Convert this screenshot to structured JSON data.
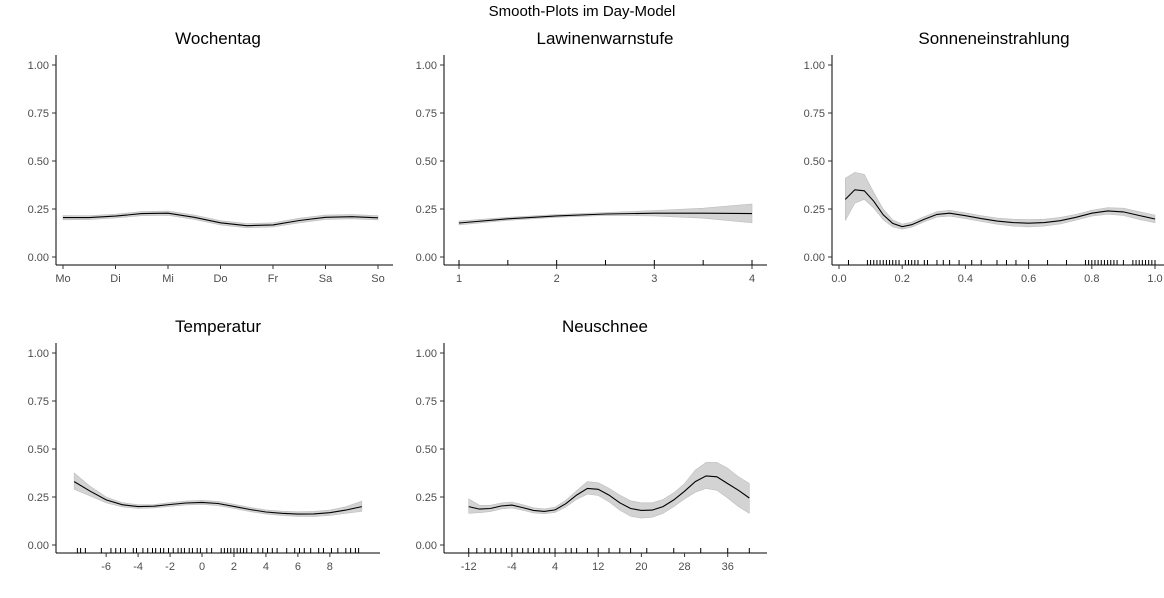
{
  "figure": {
    "title": "Smooth-Plots im Day-Model"
  },
  "chart_data": [
    {
      "type": "line",
      "title": "Wochentag",
      "xlabel": "",
      "ylabel": "",
      "ylim": [
        0,
        1
      ],
      "y_ticks": [
        "0.00",
        "0.25",
        "0.50",
        "0.75",
        "1.00"
      ],
      "xlim": [
        1,
        7
      ],
      "x_ticks": [
        {
          "v": 1,
          "label": "Mo"
        },
        {
          "v": 2,
          "label": "Di"
        },
        {
          "v": 3,
          "label": "Mi"
        },
        {
          "v": 4,
          "label": "Do"
        },
        {
          "v": 5,
          "label": "Fr"
        },
        {
          "v": 6,
          "label": "Sa"
        },
        {
          "v": 7,
          "label": "So"
        }
      ],
      "series": [
        {
          "x": [
            1,
            1.5,
            2,
            2.5,
            3,
            3.5,
            4,
            4.5,
            5,
            5.5,
            6,
            6.5,
            7
          ],
          "y": [
            0.205,
            0.205,
            0.213,
            0.226,
            0.228,
            0.207,
            0.178,
            0.163,
            0.167,
            0.19,
            0.207,
            0.21,
            0.204
          ],
          "lower": [
            0.194,
            0.195,
            0.203,
            0.215,
            0.217,
            0.196,
            0.167,
            0.152,
            0.156,
            0.178,
            0.196,
            0.199,
            0.193
          ],
          "upper": [
            0.216,
            0.215,
            0.223,
            0.237,
            0.239,
            0.218,
            0.189,
            0.174,
            0.178,
            0.202,
            0.218,
            0.221,
            0.215
          ]
        }
      ],
      "rug": []
    },
    {
      "type": "line",
      "title": "Lawinenwarnstufe",
      "xlabel": "",
      "ylabel": "",
      "ylim": [
        0,
        1
      ],
      "y_ticks": [
        "0.00",
        "0.25",
        "0.50",
        "0.75",
        "1.00"
      ],
      "xlim": [
        1,
        4
      ],
      "x_ticks": [
        {
          "v": 1,
          "label": "1"
        },
        {
          "v": 2,
          "label": "2"
        },
        {
          "v": 3,
          "label": "3"
        },
        {
          "v": 4,
          "label": "4"
        }
      ],
      "series": [
        {
          "x": [
            1,
            1.5,
            2,
            2.5,
            3,
            3.5,
            4
          ],
          "y": [
            0.177,
            0.199,
            0.214,
            0.224,
            0.228,
            0.228,
            0.226
          ],
          "lower": [
            0.167,
            0.191,
            0.207,
            0.216,
            0.214,
            0.202,
            0.178
          ],
          "upper": [
            0.187,
            0.207,
            0.221,
            0.232,
            0.242,
            0.254,
            0.276
          ]
        }
      ],
      "rug": [
        1,
        1.5,
        2,
        2.5,
        3,
        3.5,
        4
      ]
    },
    {
      "type": "line",
      "title": "Sonneneinstrahlung",
      "xlabel": "",
      "ylabel": "",
      "ylim": [
        0,
        1
      ],
      "y_ticks": [
        "0.00",
        "0.25",
        "0.50",
        "0.75",
        "1.00"
      ],
      "xlim": [
        0,
        1
      ],
      "x_ticks": [
        {
          "v": 0,
          "label": "0.0"
        },
        {
          "v": 0.2,
          "label": "0.2"
        },
        {
          "v": 0.4,
          "label": "0.4"
        },
        {
          "v": 0.6,
          "label": "0.6"
        },
        {
          "v": 0.8,
          "label": "0.8"
        },
        {
          "v": 1,
          "label": "1.0"
        }
      ],
      "series": [
        {
          "x": [
            0.02,
            0.05,
            0.08,
            0.11,
            0.14,
            0.17,
            0.2,
            0.23,
            0.27,
            0.31,
            0.35,
            0.4,
            0.45,
            0.5,
            0.55,
            0.6,
            0.65,
            0.7,
            0.75,
            0.8,
            0.85,
            0.9,
            0.95,
            1.0
          ],
          "y": [
            0.3,
            0.35,
            0.345,
            0.29,
            0.22,
            0.175,
            0.158,
            0.168,
            0.197,
            0.222,
            0.228,
            0.215,
            0.2,
            0.187,
            0.179,
            0.176,
            0.179,
            0.189,
            0.207,
            0.228,
            0.24,
            0.235,
            0.216,
            0.198
          ],
          "lower": [
            0.19,
            0.28,
            0.3,
            0.255,
            0.195,
            0.157,
            0.145,
            0.155,
            0.184,
            0.208,
            0.213,
            0.2,
            0.185,
            0.171,
            0.161,
            0.157,
            0.161,
            0.172,
            0.192,
            0.213,
            0.223,
            0.216,
            0.196,
            0.178
          ],
          "upper": [
            0.41,
            0.44,
            0.43,
            0.335,
            0.25,
            0.193,
            0.171,
            0.181,
            0.21,
            0.236,
            0.243,
            0.23,
            0.215,
            0.203,
            0.197,
            0.195,
            0.197,
            0.206,
            0.222,
            0.243,
            0.257,
            0.254,
            0.236,
            0.218
          ]
        }
      ],
      "rug": [
        0.03,
        0.09,
        0.1,
        0.11,
        0.12,
        0.13,
        0.14,
        0.15,
        0.16,
        0.17,
        0.18,
        0.19,
        0.21,
        0.22,
        0.23,
        0.24,
        0.25,
        0.27,
        0.28,
        0.31,
        0.33,
        0.35,
        0.38,
        0.42,
        0.45,
        0.5,
        0.53,
        0.56,
        0.6,
        0.66,
        0.72,
        0.78,
        0.79,
        0.8,
        0.81,
        0.82,
        0.83,
        0.84,
        0.85,
        0.86,
        0.87,
        0.88,
        0.9,
        0.93,
        0.94,
        0.95,
        0.96,
        0.97,
        0.98,
        0.99,
        1.0
      ]
    },
    {
      "type": "line",
      "title": "Temperatur",
      "xlabel": "",
      "ylabel": "",
      "ylim": [
        0,
        1
      ],
      "y_ticks": [
        "0.00",
        "0.25",
        "0.50",
        "0.75",
        "1.00"
      ],
      "xlim": [
        -8.2,
        10.2
      ],
      "x_ticks": [
        {
          "v": -6,
          "label": "-6"
        },
        {
          "v": -4,
          "label": "-4"
        },
        {
          "v": -2,
          "label": "-2"
        },
        {
          "v": 0,
          "label": "0"
        },
        {
          "v": 2,
          "label": "2"
        },
        {
          "v": 4,
          "label": "4"
        },
        {
          "v": 6,
          "label": "6"
        },
        {
          "v": 8,
          "label": "8"
        }
      ],
      "series": [
        {
          "x": [
            -8,
            -7,
            -6,
            -5,
            -4,
            -3,
            -2,
            -1,
            0,
            1,
            2,
            3,
            4,
            5,
            6,
            7,
            8,
            9,
            10
          ],
          "y": [
            0.33,
            0.28,
            0.235,
            0.21,
            0.2,
            0.202,
            0.211,
            0.219,
            0.222,
            0.216,
            0.201,
            0.185,
            0.172,
            0.165,
            0.161,
            0.162,
            0.168,
            0.182,
            0.2
          ],
          "lower": [
            0.29,
            0.255,
            0.22,
            0.199,
            0.19,
            0.193,
            0.201,
            0.209,
            0.211,
            0.205,
            0.19,
            0.174,
            0.161,
            0.154,
            0.149,
            0.149,
            0.154,
            0.165,
            0.175
          ],
          "upper": [
            0.375,
            0.305,
            0.25,
            0.221,
            0.21,
            0.211,
            0.221,
            0.229,
            0.233,
            0.227,
            0.212,
            0.196,
            0.183,
            0.176,
            0.173,
            0.175,
            0.182,
            0.199,
            0.228
          ]
        }
      ],
      "rug": [
        -7.8,
        -7.6,
        -7.3,
        -6.3,
        -5.7,
        -5.4,
        -5.1,
        -4.8,
        -4.3,
        -4.1,
        -3.7,
        -3.4,
        -3.1,
        -2.9,
        -2.6,
        -2.4,
        -2.1,
        -1.8,
        -1.5,
        -1.3,
        -1.1,
        -0.8,
        -0.6,
        -0.3,
        -0.1,
        0.3,
        0.6,
        1.2,
        1.4,
        1.6,
        1.8,
        2,
        2.2,
        2.4,
        2.6,
        2.8,
        3.1,
        3.5,
        3.8,
        4.1,
        4.4,
        4.7,
        5.3,
        5.8,
        6.1,
        6.4,
        6.8,
        7.3,
        7.6,
        8.1,
        8.5,
        9,
        9.3,
        9.6,
        9.8
      ]
    },
    {
      "type": "line",
      "title": "Neuschnee",
      "xlabel": "",
      "ylabel": "",
      "ylim": [
        0,
        1
      ],
      "y_ticks": [
        "0.00",
        "0.25",
        "0.50",
        "0.75",
        "1.00"
      ],
      "xlim": [
        -13.8,
        40.5
      ],
      "x_ticks": [
        {
          "v": -12,
          "label": "-12"
        },
        {
          "v": -4,
          "label": "-4"
        },
        {
          "v": 4,
          "label": "4"
        },
        {
          "v": 12,
          "label": "12"
        },
        {
          "v": 20,
          "label": "20"
        },
        {
          "v": 28,
          "label": "28"
        },
        {
          "v": 36,
          "label": "36"
        }
      ],
      "series": [
        {
          "x": [
            -12,
            -10,
            -8,
            -6,
            -4,
            -2,
            0,
            2,
            4,
            6,
            8,
            10,
            12,
            14,
            16,
            18,
            20,
            22,
            24,
            26,
            28,
            30,
            32,
            34,
            36,
            38,
            40
          ],
          "y": [
            0.2,
            0.187,
            0.19,
            0.203,
            0.208,
            0.195,
            0.18,
            0.175,
            0.183,
            0.215,
            0.26,
            0.295,
            0.29,
            0.26,
            0.22,
            0.19,
            0.18,
            0.182,
            0.2,
            0.235,
            0.28,
            0.33,
            0.36,
            0.355,
            0.32,
            0.285,
            0.245
          ],
          "lower": [
            0.165,
            0.168,
            0.174,
            0.188,
            0.193,
            0.181,
            0.167,
            0.163,
            0.17,
            0.198,
            0.238,
            0.265,
            0.258,
            0.225,
            0.182,
            0.15,
            0.14,
            0.145,
            0.165,
            0.2,
            0.24,
            0.275,
            0.295,
            0.285,
            0.245,
            0.2,
            0.165
          ],
          "upper": [
            0.24,
            0.207,
            0.207,
            0.219,
            0.224,
            0.21,
            0.194,
            0.188,
            0.197,
            0.233,
            0.283,
            0.33,
            0.324,
            0.296,
            0.26,
            0.23,
            0.22,
            0.22,
            0.237,
            0.272,
            0.32,
            0.39,
            0.43,
            0.43,
            0.4,
            0.355,
            0.32
          ]
        }
      ],
      "rug": [
        -12,
        -10.5,
        -9,
        -8,
        -7,
        -6,
        -5,
        -4,
        -3,
        -2,
        -1,
        0,
        1,
        2,
        3,
        4,
        6,
        7,
        8,
        10,
        12,
        14,
        16,
        18,
        21,
        26,
        31,
        36,
        40
      ]
    }
  ]
}
